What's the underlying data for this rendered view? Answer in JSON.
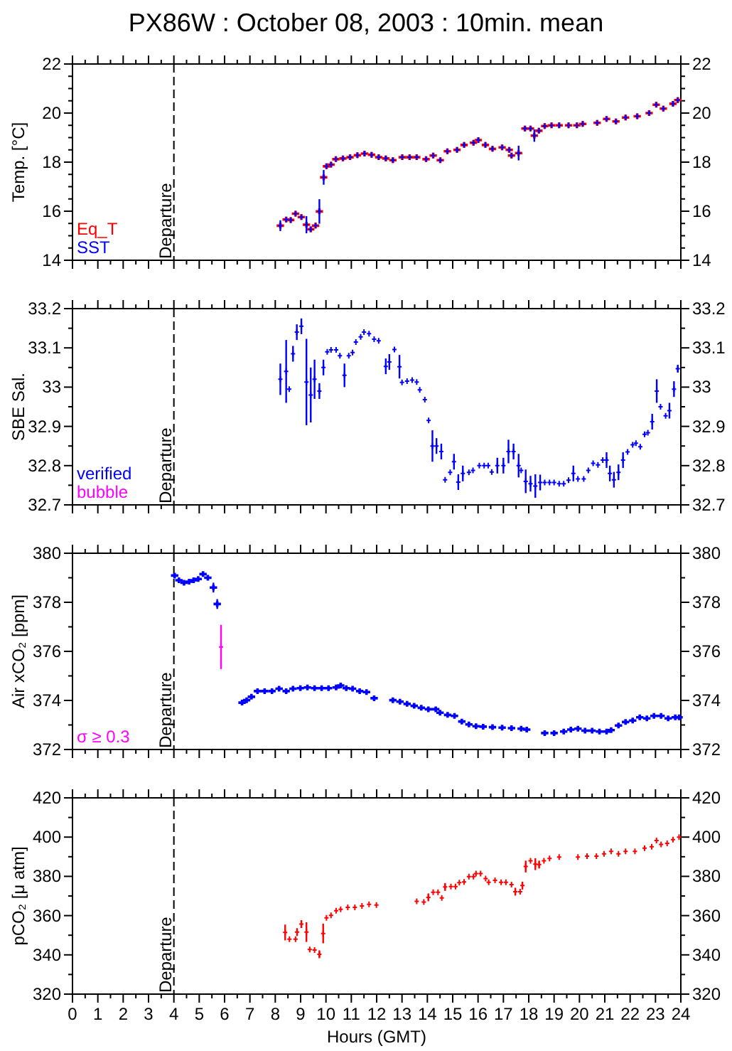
{
  "chart_data": [
    {
      "type": "scatter",
      "title": "PX86W : October 08, 2003 : 10min. mean",
      "ylabel": "Temp. [°C]",
      "marker": "cross",
      "legend": "bottom left",
      "tick_labels": "y",
      "xlim": [
        0,
        24
      ],
      "xticks": [
        0,
        {
          "value": 0.5,
          "label": null
        },
        1,
        {
          "value": 1.5,
          "label": null
        },
        2,
        {
          "value": 2.5,
          "label": null
        },
        3,
        {
          "value": 3.5,
          "label": null
        },
        4,
        {
          "value": 4.5,
          "label": null
        },
        5,
        {
          "value": 5.5,
          "label": null
        },
        6,
        {
          "value": 6.5,
          "label": null
        },
        7,
        {
          "value": 7.5,
          "label": null
        },
        8,
        {
          "value": 8.5,
          "label": null
        },
        9,
        {
          "value": 9.5,
          "label": null
        },
        10,
        {
          "value": 10.5,
          "label": null
        },
        11,
        {
          "value": 11.5,
          "label": null
        },
        12,
        {
          "value": 12.5,
          "label": null
        },
        13,
        {
          "value": 13.5,
          "label": null
        },
        14,
        {
          "value": 14.5,
          "label": null
        },
        15,
        {
          "value": 15.5,
          "label": null
        },
        16,
        {
          "value": 16.5,
          "label": null
        },
        17,
        {
          "value": 17.5,
          "label": null
        },
        18,
        {
          "value": 18.5,
          "label": null
        },
        19,
        {
          "value": 19.5,
          "label": null
        },
        20,
        {
          "value": 20.5,
          "label": null
        },
        21,
        {
          "value": 21.5,
          "label": null
        },
        22,
        {
          "value": 22.5,
          "label": null
        },
        23,
        {
          "value": 23.5,
          "label": null
        },
        24
      ],
      "ylim": [
        14,
        22
      ],
      "yticks": [
        14,
        {
          "value": 14.5,
          "label": null
        },
        {
          "value": 15,
          "label": null
        },
        {
          "value": 15.5,
          "label": null
        },
        16,
        {
          "value": 16.5,
          "label": null
        },
        {
          "value": 17,
          "label": null
        },
        {
          "value": 17.5,
          "label": null
        },
        18,
        {
          "value": 18.5,
          "label": null
        },
        {
          "value": 19,
          "label": null
        },
        {
          "value": 19.5,
          "label": null
        },
        20,
        {
          "value": 20.5,
          "label": null
        },
        {
          "value": 21,
          "label": null
        },
        {
          "value": 21.5,
          "label": null
        },
        22
      ],
      "y2lim": [
        14,
        22
      ],
      "y2ticks": [
        14,
        {
          "value": 14.5,
          "label": null
        },
        {
          "value": 15,
          "label": null
        },
        {
          "value": 15.5,
          "label": null
        },
        16,
        {
          "value": 16.5,
          "label": null
        },
        {
          "value": 17,
          "label": null
        },
        {
          "value": 17.5,
          "label": null
        },
        18,
        {
          "value": 18.5,
          "label": null
        },
        {
          "value": 19,
          "label": null
        },
        {
          "value": 19.5,
          "label": null
        },
        20,
        {
          "value": 20.5,
          "label": null
        },
        {
          "value": 21,
          "label": null
        },
        {
          "value": 21.5,
          "label": null
        },
        22
      ],
      "ref_lines": [
        {
          "axis": "x",
          "value": 4,
          "label": "Departure",
          "line_style": "dashed",
          "color": "#000000"
        }
      ],
      "x": [
        8.2,
        8.43,
        8.61,
        8.8,
        9.03,
        9.23,
        9.4,
        9.59,
        9.74,
        9.91,
        10.02,
        10.2,
        10.39,
        10.67,
        10.95,
        11.24,
        11.52,
        11.8,
        12.08,
        12.36,
        12.64,
        13.01,
        13.3,
        13.58,
        13.95,
        14.23,
        14.51,
        14.79,
        15.17,
        15.45,
        15.82,
        16.01,
        16.29,
        16.57,
        16.95,
        17.23,
        17.32,
        17.6,
        17.85,
        18.07,
        18.22,
        18.4,
        18.63,
        18.9,
        19.2,
        19.57,
        19.9,
        20.13,
        20.7,
        21.07,
        21.44,
        21.82,
        22.28,
        22.75,
        23.03,
        23.31,
        23.69,
        23.88
      ],
      "series": [
        {
          "name": "Eq_T",
          "color": "#ff0000",
          "values": [
            15.41,
            15.66,
            15.64,
            15.9,
            15.76,
            15.45,
            15.26,
            15.41,
            15.99,
            17.38,
            17.83,
            17.9,
            18.12,
            18.15,
            18.2,
            18.28,
            18.35,
            18.3,
            18.2,
            18.15,
            18.08,
            18.2,
            18.2,
            18.2,
            18.12,
            18.27,
            18.08,
            18.44,
            18.5,
            18.7,
            18.79,
            18.9,
            18.7,
            18.54,
            18.6,
            18.5,
            18.27,
            18.37,
            19.37,
            19.37,
            19.08,
            19.28,
            19.47,
            19.5,
            19.5,
            19.5,
            19.5,
            19.56,
            19.6,
            19.76,
            19.66,
            19.82,
            19.87,
            20.0,
            20.34,
            20.18,
            20.38,
            20.53
          ]
        },
        {
          "name": "SST",
          "color": "#0000ff",
          "values": [
            15.41,
            15.66,
            15.64,
            15.9,
            15.76,
            15.45,
            15.26,
            15.41,
            15.99,
            17.38,
            17.83,
            17.9,
            18.12,
            18.15,
            18.2,
            18.28,
            18.35,
            18.3,
            18.2,
            18.15,
            18.08,
            18.2,
            18.2,
            18.2,
            18.12,
            18.27,
            18.08,
            18.44,
            18.5,
            18.7,
            18.79,
            18.9,
            18.7,
            18.54,
            18.6,
            18.5,
            18.27,
            18.37,
            19.37,
            19.37,
            19.08,
            19.28,
            19.47,
            19.5,
            19.5,
            19.5,
            19.5,
            19.56,
            19.6,
            19.76,
            19.66,
            19.82,
            19.87,
            20.0,
            20.34,
            20.18,
            20.38,
            20.53
          ],
          "errors": [
            0.22,
            null,
            null,
            null,
            null,
            0.35,
            null,
            null,
            0.5,
            0.3,
            null,
            null,
            null,
            null,
            null,
            null,
            null,
            null,
            null,
            null,
            null,
            null,
            null,
            null,
            null,
            null,
            null,
            null,
            null,
            null,
            null,
            null,
            null,
            null,
            null,
            null,
            null,
            0.3,
            null,
            null,
            0.25,
            null,
            null,
            null,
            null,
            null,
            null,
            null,
            null,
            null,
            null,
            null,
            null,
            null,
            null,
            null,
            null,
            null
          ]
        }
      ]
    },
    {
      "type": "scatter",
      "ylabel": "SBE Sal.",
      "marker": "cross",
      "legend": "bottom left",
      "tick_labels": "y",
      "xlim": [
        0,
        24
      ],
      "xticks": [
        0,
        {
          "value": 0.5,
          "label": null
        },
        1,
        {
          "value": 1.5,
          "label": null
        },
        2,
        {
          "value": 2.5,
          "label": null
        },
        3,
        {
          "value": 3.5,
          "label": null
        },
        4,
        {
          "value": 4.5,
          "label": null
        },
        5,
        {
          "value": 5.5,
          "label": null
        },
        6,
        {
          "value": 6.5,
          "label": null
        },
        7,
        {
          "value": 7.5,
          "label": null
        },
        8,
        {
          "value": 8.5,
          "label": null
        },
        9,
        {
          "value": 9.5,
          "label": null
        },
        10,
        {
          "value": 10.5,
          "label": null
        },
        11,
        {
          "value": 11.5,
          "label": null
        },
        12,
        {
          "value": 12.5,
          "label": null
        },
        13,
        {
          "value": 13.5,
          "label": null
        },
        14,
        {
          "value": 14.5,
          "label": null
        },
        15,
        {
          "value": 15.5,
          "label": null
        },
        16,
        {
          "value": 16.5,
          "label": null
        },
        17,
        {
          "value": 17.5,
          "label": null
        },
        18,
        {
          "value": 18.5,
          "label": null
        },
        19,
        {
          "value": 19.5,
          "label": null
        },
        20,
        {
          "value": 20.5,
          "label": null
        },
        21,
        {
          "value": 21.5,
          "label": null
        },
        22,
        {
          "value": 22.5,
          "label": null
        },
        23,
        {
          "value": 23.5,
          "label": null
        },
        24
      ],
      "ylim": [
        32.7,
        33.2
      ],
      "yticks": [
        32.7,
        {
          "value": 32.75,
          "label": null
        },
        32.8,
        {
          "value": 32.85,
          "label": null
        },
        32.9,
        {
          "value": 32.95,
          "label": null
        },
        33,
        {
          "value": 33.05,
          "label": null
        },
        33.1,
        {
          "value": 33.15,
          "label": null
        },
        33.2
      ],
      "y2lim": [
        32.7,
        33.2
      ],
      "y2ticks": [
        32.7,
        {
          "value": 32.75,
          "label": null
        },
        32.8,
        {
          "value": 32.85,
          "label": null
        },
        32.9,
        {
          "value": 32.95,
          "label": null
        },
        33,
        {
          "value": 33.05,
          "label": null
        },
        33.1,
        {
          "value": 33.15,
          "label": null
        },
        33.2
      ],
      "ref_lines": [
        {
          "axis": "x",
          "value": 4,
          "label": "Departure",
          "line_style": "dashed",
          "color": "#000000"
        }
      ],
      "series": [
        {
          "name": "verified",
          "color": "#0000ff",
          "x": [
            8.2,
            8.43,
            8.55,
            8.7,
            8.85,
            9.03,
            9.23,
            9.4,
            9.55,
            9.74,
            9.9,
            10.05,
            10.2,
            10.4,
            10.55,
            10.73,
            10.9,
            11.05,
            11.18,
            11.37,
            11.5,
            11.7,
            11.9,
            12.08,
            12.36,
            12.5,
            12.7,
            12.9,
            13.0,
            13.2,
            13.4,
            13.58,
            13.7,
            13.9,
            14.05,
            14.2,
            14.36,
            14.55,
            14.7,
            14.9,
            15.05,
            15.22,
            15.4,
            15.64,
            15.8,
            16.05,
            16.24,
            16.4,
            16.54,
            16.76,
            17.0,
            17.2,
            17.4,
            17.6,
            17.7,
            17.88,
            18.07,
            18.26,
            18.45,
            18.63,
            18.82,
            19.0,
            19.2,
            19.38,
            19.57,
            19.76,
            19.94,
            20.17,
            20.35,
            20.54,
            20.73,
            20.92,
            21.07,
            21.2,
            21.36,
            21.54,
            21.72,
            21.9,
            22.1,
            22.23,
            22.4,
            22.57,
            22.7,
            22.87,
            23.05,
            23.2,
            23.4,
            23.55,
            23.73,
            23.88
          ],
          "values": [
            33.02,
            33.04,
            32.995,
            33.085,
            33.14,
            33.155,
            33.013,
            32.98,
            33.02,
            32.99,
            33.05,
            33.09,
            33.095,
            33.095,
            33.08,
            33.03,
            33.08,
            33.088,
            33.115,
            33.128,
            33.14,
            33.136,
            33.122,
            33.118,
            33.053,
            33.064,
            33.096,
            33.052,
            33.012,
            33.015,
            33.018,
            33.013,
            32.993,
            32.968,
            32.915,
            32.85,
            32.85,
            32.836,
            32.764,
            32.783,
            32.81,
            32.758,
            32.78,
            32.783,
            32.788,
            32.8,
            32.8,
            32.8,
            32.784,
            32.8,
            32.8,
            32.836,
            32.836,
            32.8,
            32.788,
            32.76,
            32.754,
            32.748,
            32.757,
            32.757,
            32.757,
            32.757,
            32.754,
            32.754,
            32.763,
            32.78,
            32.766,
            32.766,
            32.788,
            32.806,
            32.802,
            32.814,
            32.814,
            32.78,
            32.764,
            32.783,
            32.814,
            32.835,
            32.853,
            32.857,
            32.848,
            32.88,
            32.884,
            32.912,
            32.99,
            32.95,
            32.927,
            32.94,
            32.995,
            33.047
          ],
          "errors": [
            0.04,
            0.08,
            null,
            0.02,
            0.02,
            0.02,
            0.11,
            0.07,
            0.05,
            0.02,
            0.02,
            null,
            null,
            null,
            null,
            0.03,
            null,
            null,
            null,
            null,
            null,
            null,
            null,
            null,
            0.02,
            0.02,
            null,
            0.03,
            null,
            null,
            null,
            null,
            null,
            null,
            null,
            0.04,
            0.02,
            0.02,
            null,
            null,
            0.02,
            0.02,
            0.02,
            null,
            null,
            null,
            null,
            null,
            null,
            0.02,
            0.02,
            0.03,
            0.02,
            0.03,
            null,
            0.03,
            0.02,
            0.03,
            0.02,
            null,
            null,
            null,
            null,
            null,
            null,
            0.02,
            null,
            null,
            null,
            null,
            null,
            null,
            0.02,
            0.02,
            0.02,
            0.02,
            0.02,
            null,
            null,
            null,
            null,
            null,
            null,
            0.02,
            0.03,
            null,
            null,
            0.02,
            0.02,
            0.01
          ]
        },
        {
          "name": "bubble",
          "color": "#ff00ff"
        }
      ]
    },
    {
      "type": "scatter",
      "ylabel": "Air xCO₂ [ppm]",
      "marker": "cross",
      "legend": "bottom left",
      "tick_labels": "y",
      "xlim": [
        0,
        24
      ],
      "xticks": [
        0,
        {
          "value": 0.5,
          "label": null
        },
        1,
        {
          "value": 1.5,
          "label": null
        },
        2,
        {
          "value": 2.5,
          "label": null
        },
        3,
        {
          "value": 3.5,
          "label": null
        },
        4,
        {
          "value": 4.5,
          "label": null
        },
        5,
        {
          "value": 5.5,
          "label": null
        },
        6,
        {
          "value": 6.5,
          "label": null
        },
        7,
        {
          "value": 7.5,
          "label": null
        },
        8,
        {
          "value": 8.5,
          "label": null
        },
        9,
        {
          "value": 9.5,
          "label": null
        },
        10,
        {
          "value": 10.5,
          "label": null
        },
        11,
        {
          "value": 11.5,
          "label": null
        },
        12,
        {
          "value": 12.5,
          "label": null
        },
        13,
        {
          "value": 13.5,
          "label": null
        },
        14,
        {
          "value": 14.5,
          "label": null
        },
        15,
        {
          "value": 15.5,
          "label": null
        },
        16,
        {
          "value": 16.5,
          "label": null
        },
        17,
        {
          "value": 17.5,
          "label": null
        },
        18,
        {
          "value": 18.5,
          "label": null
        },
        19,
        {
          "value": 19.5,
          "label": null
        },
        20,
        {
          "value": 20.5,
          "label": null
        },
        21,
        {
          "value": 21.5,
          "label": null
        },
        22,
        {
          "value": 22.5,
          "label": null
        },
        23,
        {
          "value": 23.5,
          "label": null
        },
        24
      ],
      "ylim": [
        372,
        380
      ],
      "yticks": [
        372,
        {
          "value": 373,
          "label": null
        },
        374,
        {
          "value": 375,
          "label": null
        },
        376,
        {
          "value": 377,
          "label": null
        },
        378,
        {
          "value": 379,
          "label": null
        },
        380
      ],
      "y2lim": [
        372,
        380
      ],
      "y2ticks": [
        372,
        {
          "value": 373,
          "label": null
        },
        374,
        {
          "value": 375,
          "label": null
        },
        376,
        {
          "value": 377,
          "label": null
        },
        378,
        {
          "value": 379,
          "label": null
        },
        380
      ],
      "ref_lines": [
        {
          "axis": "x",
          "value": 4,
          "label": "Departure",
          "line_style": "dashed",
          "color": "#000000"
        }
      ],
      "series": [
        {
          "color": "#0000ff",
          "x": [
            4.03,
            4.2,
            4.4,
            4.6,
            4.78,
            4.96,
            5.15,
            5.34,
            5.56,
            5.71,
            6.69,
            6.87,
            7.06,
            7.3,
            7.58,
            7.87,
            8.15,
            8.43,
            8.7,
            8.99,
            9.27,
            9.55,
            9.83,
            10.1,
            10.4,
            10.58,
            10.8,
            11.05,
            11.33,
            11.6,
            11.9,
            12.64,
            12.92,
            13.2,
            13.48,
            13.76,
            14.04,
            14.33,
            14.5,
            14.8,
            15.07,
            15.36,
            15.64,
            15.92,
            16.2,
            16.57,
            16.95,
            17.32,
            17.7,
            17.92,
            18.63,
            19.0,
            19.38,
            19.66,
            19.94,
            20.22,
            20.5,
            20.79,
            21.07,
            21.25,
            21.54,
            21.82,
            22.1,
            22.38,
            22.66,
            22.94,
            23.22,
            23.5,
            23.78,
            23.93
          ],
          "values": [
            379.09,
            378.9,
            378.8,
            378.84,
            378.9,
            378.95,
            379.15,
            379.0,
            378.6,
            377.93,
            373.91,
            374.01,
            374.15,
            374.38,
            374.38,
            374.38,
            374.48,
            374.38,
            374.48,
            374.5,
            374.53,
            374.5,
            374.5,
            374.5,
            374.53,
            374.61,
            374.5,
            374.48,
            374.38,
            374.34,
            374.09,
            374.01,
            373.95,
            373.86,
            373.78,
            373.7,
            373.64,
            373.64,
            373.5,
            373.41,
            373.37,
            373.14,
            373.02,
            372.95,
            372.93,
            372.91,
            372.89,
            372.87,
            372.85,
            372.81,
            372.67,
            372.67,
            372.73,
            372.81,
            372.85,
            372.77,
            372.77,
            372.73,
            372.73,
            372.79,
            372.98,
            373.12,
            373.18,
            373.31,
            373.27,
            373.37,
            373.37,
            373.27,
            373.31,
            373.31
          ],
          "errors": [
            null,
            null,
            null,
            null,
            null,
            null,
            null,
            null,
            0.2,
            0.2,
            null,
            null,
            null,
            null,
            null,
            null,
            null,
            null,
            null,
            null,
            null,
            null,
            null,
            null,
            null,
            null,
            null,
            null,
            null,
            null,
            null,
            null,
            null,
            null,
            null,
            null,
            null,
            null,
            null,
            null,
            null,
            null,
            null,
            null,
            null,
            null,
            null,
            null,
            null,
            null,
            null,
            null,
            null,
            null,
            null,
            null,
            null,
            null,
            null,
            null,
            null,
            null,
            null,
            null,
            null,
            null,
            null,
            null,
            null,
            null
          ]
        },
        {
          "name": "σ ≥ 0.3",
          "color": "#ff00ff",
          "x": [
            5.86
          ],
          "values": [
            376.18
          ],
          "errors": [
            0.9
          ]
        }
      ]
    },
    {
      "type": "scatter",
      "ylabel": "pCO₂ [μ atm]",
      "xlabel": "Hours (GMT)",
      "marker": "cross",
      "xlim": [
        0,
        24
      ],
      "xticks": [
        0,
        {
          "value": 0.5,
          "label": null
        },
        1,
        {
          "value": 1.5,
          "label": null
        },
        2,
        {
          "value": 2.5,
          "label": null
        },
        3,
        {
          "value": 3.5,
          "label": null
        },
        4,
        {
          "value": 4.5,
          "label": null
        },
        5,
        {
          "value": 5.5,
          "label": null
        },
        6,
        {
          "value": 6.5,
          "label": null
        },
        7,
        {
          "value": 7.5,
          "label": null
        },
        8,
        {
          "value": 8.5,
          "label": null
        },
        9,
        {
          "value": 9.5,
          "label": null
        },
        10,
        {
          "value": 10.5,
          "label": null
        },
        11,
        {
          "value": 11.5,
          "label": null
        },
        12,
        {
          "value": 12.5,
          "label": null
        },
        13,
        {
          "value": 13.5,
          "label": null
        },
        14,
        {
          "value": 14.5,
          "label": null
        },
        15,
        {
          "value": 15.5,
          "label": null
        },
        16,
        {
          "value": 16.5,
          "label": null
        },
        17,
        {
          "value": 17.5,
          "label": null
        },
        18,
        {
          "value": 18.5,
          "label": null
        },
        19,
        {
          "value": 19.5,
          "label": null
        },
        20,
        {
          "value": 20.5,
          "label": null
        },
        21,
        {
          "value": 21.5,
          "label": null
        },
        22,
        {
          "value": 22.5,
          "label": null
        },
        23,
        {
          "value": 23.5,
          "label": null
        },
        24
      ],
      "ylim": [
        320,
        420
      ],
      "yticks": [
        320,
        {
          "value": 330,
          "label": null
        },
        340,
        {
          "value": 350,
          "label": null
        },
        360,
        {
          "value": 370,
          "label": null
        },
        380,
        {
          "value": 390,
          "label": null
        },
        400,
        {
          "value": 410,
          "label": null
        },
        420
      ],
      "y2lim": [
        320,
        420
      ],
      "y2ticks": [
        320,
        {
          "value": 330,
          "label": null
        },
        340,
        {
          "value": 350,
          "label": null
        },
        360,
        {
          "value": 370,
          "label": null
        },
        380,
        {
          "value": 390,
          "label": null
        },
        400,
        {
          "value": 410,
          "label": null
        },
        420
      ],
      "ref_lines": [
        {
          "axis": "x",
          "value": 4,
          "label": "Departure",
          "line_style": "dashed",
          "color": "#000000"
        }
      ],
      "series": [
        {
          "color": "#ff0000",
          "x": [
            8.39,
            8.56,
            8.8,
            8.86,
            9.03,
            9.23,
            9.36,
            9.55,
            9.74,
            9.89,
            10.02,
            10.2,
            10.4,
            10.58,
            10.86,
            11.14,
            11.42,
            11.7,
            11.99,
            13.58,
            13.86,
            14.04,
            14.23,
            14.42,
            14.57,
            14.7,
            14.93,
            15.11,
            15.26,
            15.45,
            15.64,
            15.82,
            15.92,
            16.1,
            16.3,
            16.42,
            16.67,
            16.91,
            17.1,
            17.32,
            17.47,
            17.66,
            17.75,
            17.88,
            18.07,
            18.26,
            18.41,
            18.6,
            18.82,
            19.2,
            19.94,
            20.3,
            20.67,
            20.97,
            21.25,
            21.54,
            21.82,
            22.19,
            22.57,
            22.85,
            23.04,
            23.22,
            23.46,
            23.69,
            23.93
          ],
          "values": [
            351.4,
            348,
            348,
            351.6,
            355.7,
            351.6,
            342.7,
            342.5,
            340.3,
            350.9,
            358.9,
            360.1,
            362.5,
            363.2,
            364.2,
            364.2,
            364.9,
            365.7,
            365.4,
            367.3,
            366.9,
            369.3,
            371.9,
            371.9,
            369,
            374.6,
            374.8,
            374.8,
            376.8,
            377.2,
            379.9,
            379.9,
            381.4,
            381.4,
            378.9,
            377,
            378,
            377,
            377,
            375.8,
            372.2,
            372.2,
            375.3,
            385,
            387.9,
            386.2,
            386,
            387.9,
            389.1,
            389.8,
            389.8,
            390.3,
            390.3,
            391.5,
            392.7,
            391.5,
            392.7,
            392.7,
            394.4,
            395.1,
            398.3,
            396.3,
            396.8,
            398.7,
            400
          ],
          "errors": [
            4,
            null,
            null,
            2,
            2,
            5,
            null,
            null,
            2,
            5,
            null,
            null,
            null,
            null,
            null,
            null,
            null,
            null,
            null,
            null,
            null,
            2,
            null,
            null,
            null,
            2,
            null,
            null,
            null,
            null,
            null,
            null,
            null,
            null,
            null,
            null,
            null,
            null,
            null,
            null,
            2,
            null,
            2,
            3,
            null,
            3,
            2,
            null,
            null,
            null,
            null,
            null,
            null,
            null,
            null,
            null,
            null,
            null,
            null,
            null,
            null,
            null,
            null,
            null,
            null
          ]
        }
      ]
    }
  ]
}
